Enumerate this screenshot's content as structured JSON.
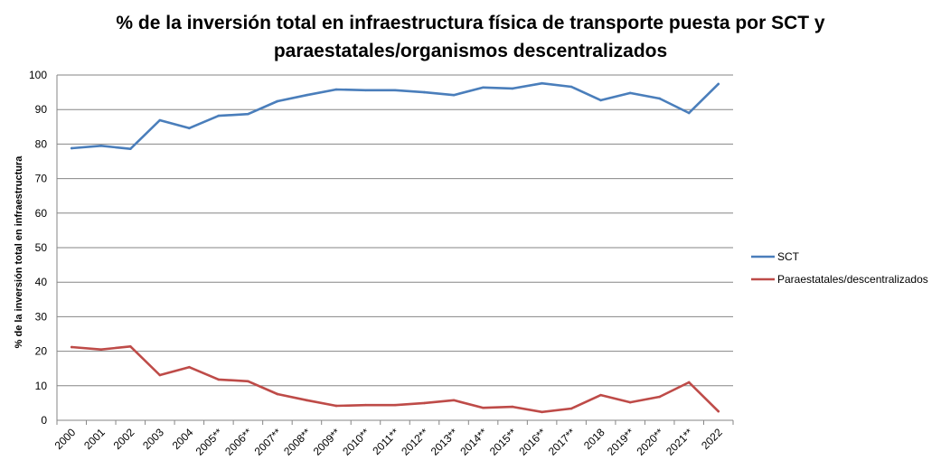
{
  "chart_data": {
    "type": "line",
    "title_lines": [
      "% de la inversión total en infraestructura física de transporte puesta por SCT y",
      "paraestatales/organismos descentralizados"
    ],
    "xlabel": "",
    "ylabel": "% de la inversión total en infraestructura",
    "ylim": [
      0,
      100
    ],
    "yticks": [
      0,
      10,
      20,
      30,
      40,
      50,
      60,
      70,
      80,
      90,
      100
    ],
    "grid": true,
    "legend_position": "right",
    "categories": [
      "2000",
      "2001",
      "2002",
      "2003",
      "2004",
      "2005**",
      "2006**",
      "2007**",
      "2008**",
      "2009**",
      "2010**",
      "2011**",
      "2012**",
      "2013**",
      "2014**",
      "2015**",
      "2016**",
      "2017**",
      "2018",
      "2019**",
      "2020**",
      "2021**",
      "2022"
    ],
    "series": [
      {
        "name": "SCT",
        "color": "#4a7ebb",
        "values": [
          78.8,
          79.5,
          78.6,
          86.9,
          84.6,
          88.2,
          88.7,
          92.4,
          94.2,
          95.8,
          95.6,
          95.6,
          95.0,
          94.2,
          96.4,
          96.1,
          97.6,
          96.6,
          92.7,
          94.8,
          93.2,
          89.0,
          97.4
        ]
      },
      {
        "name": "Paraestatales/descentralizados",
        "color": "#be4b48",
        "values": [
          21.2,
          20.5,
          21.4,
          13.1,
          15.4,
          11.8,
          11.3,
          7.6,
          5.8,
          4.2,
          4.4,
          4.4,
          5.0,
          5.8,
          3.6,
          3.9,
          2.4,
          3.4,
          7.3,
          5.2,
          6.8,
          11.0,
          2.6
        ]
      }
    ]
  }
}
